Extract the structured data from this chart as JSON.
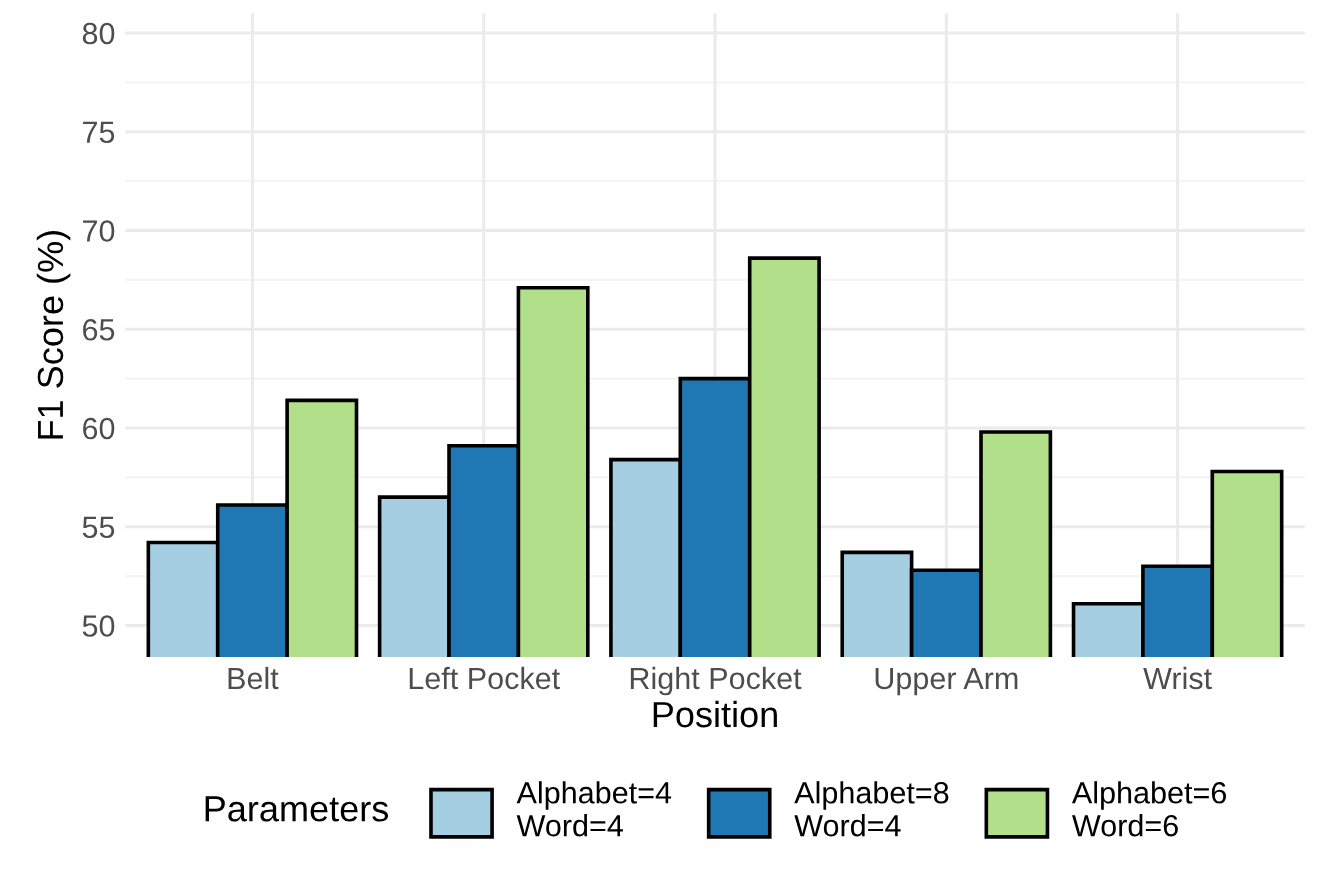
{
  "chart_data": {
    "type": "bar",
    "xlabel": "Position",
    "ylabel": "F1 Score (%)",
    "legend_title": "Parameters",
    "categories": [
      "Belt",
      "Left Pocket",
      "Right Pocket",
      "Upper Arm",
      "Wrist"
    ],
    "series": [
      {
        "name": "Alphabet=4\nWord=4",
        "color": "#a6cee3",
        "values": [
          54.2,
          56.5,
          58.4,
          53.7,
          51.1
        ]
      },
      {
        "name": "Alphabet=8\nWord=4",
        "color": "#1f78b4",
        "values": [
          56.1,
          59.1,
          62.5,
          52.8,
          53.0
        ]
      },
      {
        "name": "Alphabet=6\nWord=6",
        "color": "#b2df8a",
        "values": [
          61.4,
          67.1,
          68.6,
          59.8,
          57.8
        ]
      }
    ],
    "ylim": [
      48.4,
      81
    ],
    "yticks": [
      50,
      55,
      60,
      65,
      70,
      75,
      80
    ],
    "grid": true,
    "legend": "bottom"
  }
}
